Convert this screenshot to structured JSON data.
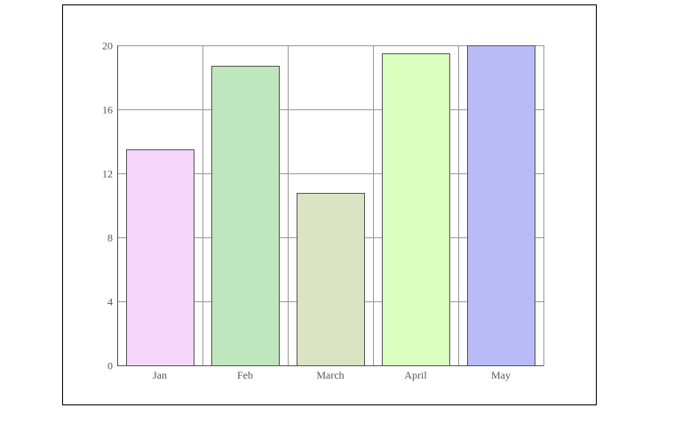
{
  "chart_data": {
    "type": "bar",
    "categories": [
      "Jan",
      "Feb",
      "March",
      "April",
      "May"
    ],
    "values": [
      13.5,
      18.7,
      10.8,
      19.5,
      20
    ],
    "colors": [
      "#f5d5fa",
      "#c0e6bd",
      "#dbe3c2",
      "#daffbf",
      "#b8bbf5"
    ],
    "title": "",
    "xlabel": "",
    "ylabel": "",
    "ylim": [
      0,
      20
    ],
    "yticks": [
      0,
      4,
      8,
      12,
      16,
      20
    ],
    "grid": true,
    "legend": "none",
    "bar_stroke_color": "#555555",
    "grid_color": "#999999"
  }
}
